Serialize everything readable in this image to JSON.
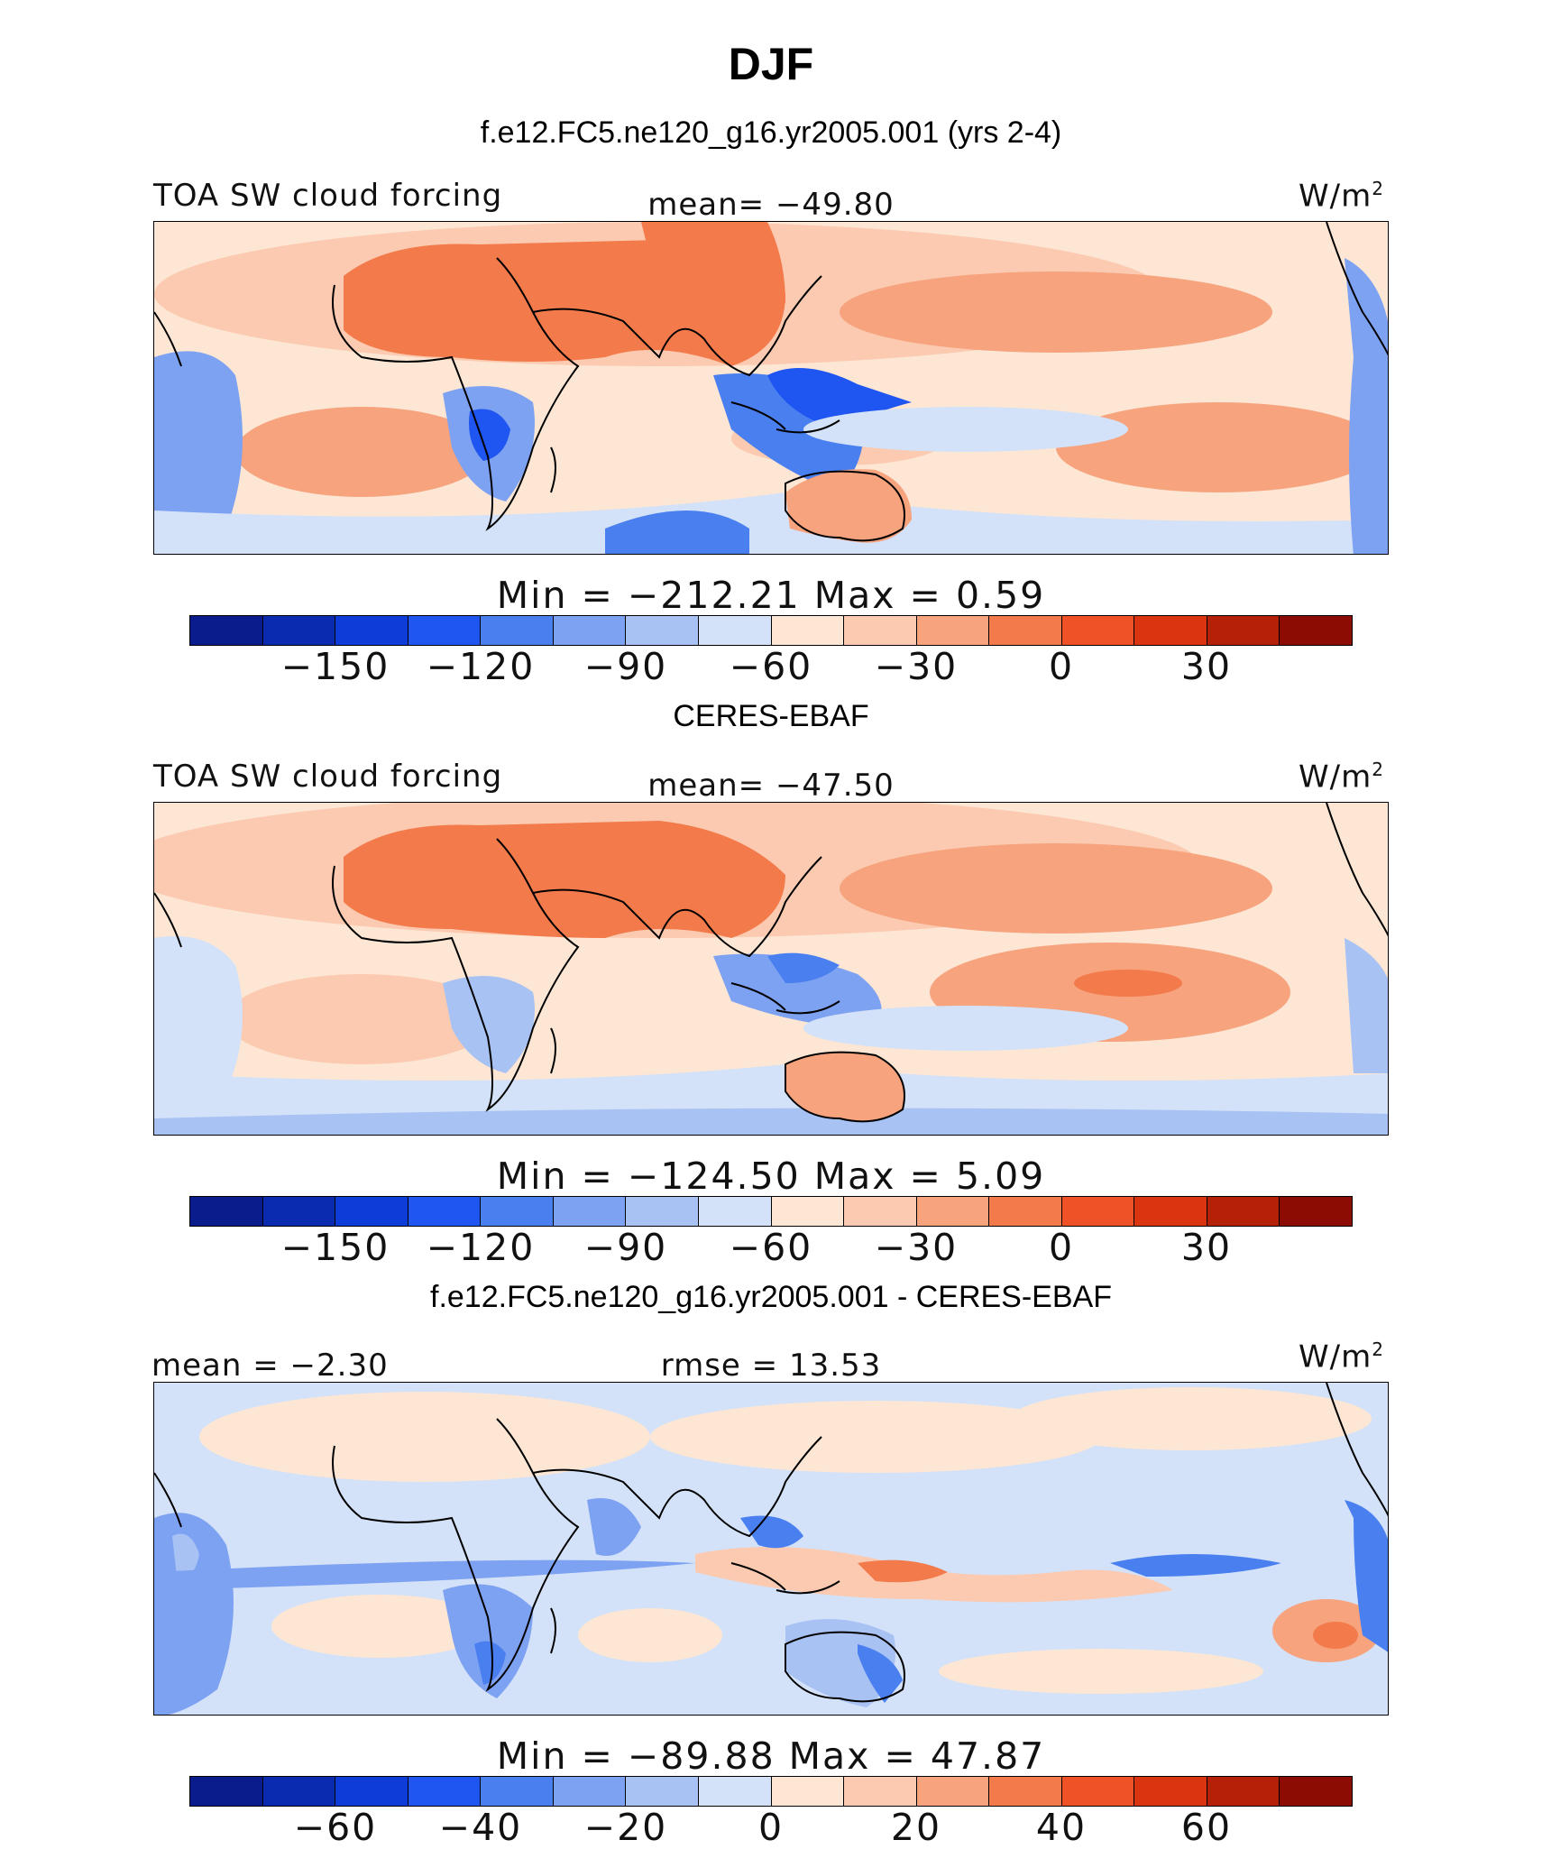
{
  "figure": {
    "title": "DJF"
  },
  "panels": [
    {
      "subtitle": "f.e12.FC5.ne120_g16.yr2005.001 (yrs 2-4)",
      "left_label": "TOA SW cloud forcing",
      "center_label": "mean= −49.80",
      "unit": "W/m",
      "unit_sup": "2",
      "range_text": "Min = −212.21 Max =    0.59",
      "colorbar_ticks": [
        "−150",
        "−120",
        "−90",
        "−60",
        "−30",
        "0",
        "30"
      ]
    },
    {
      "subtitle": "CERES-EBAF",
      "left_label": "TOA SW cloud forcing",
      "center_label": "mean= −47.50",
      "unit": "W/m",
      "unit_sup": "2",
      "range_text": "Min = −124.50 Max =    5.09",
      "colorbar_ticks": [
        "−150",
        "−120",
        "−90",
        "−60",
        "−30",
        "0",
        "30"
      ]
    },
    {
      "subtitle": "f.e12.FC5.ne120_g16.yr2005.001 - CERES-EBAF",
      "left_label": "mean =  −2.30",
      "center_label": "rmse =  13.53",
      "unit": "W/m",
      "unit_sup": "2",
      "range_text": "Min = −89.88 Max =  47.87",
      "colorbar_ticks": [
        "−60",
        "−40",
        "−20",
        "0",
        "20",
        "40",
        "60"
      ]
    }
  ],
  "colors": {
    "colorbar": [
      "#0a1b8c",
      "#0a2bb0",
      "#0e3cd8",
      "#1f55f0",
      "#4a7ff0",
      "#7ea2f2",
      "#a8c2f4",
      "#d3e2f8",
      "#fde6d4",
      "#fbcab0",
      "#f6a37e",
      "#f37a4b",
      "#ef5226",
      "#da3410",
      "#b42008",
      "#8c0c04"
    ],
    "ocean_neutral": "#fde6d4",
    "land_outline": "#000000"
  }
}
